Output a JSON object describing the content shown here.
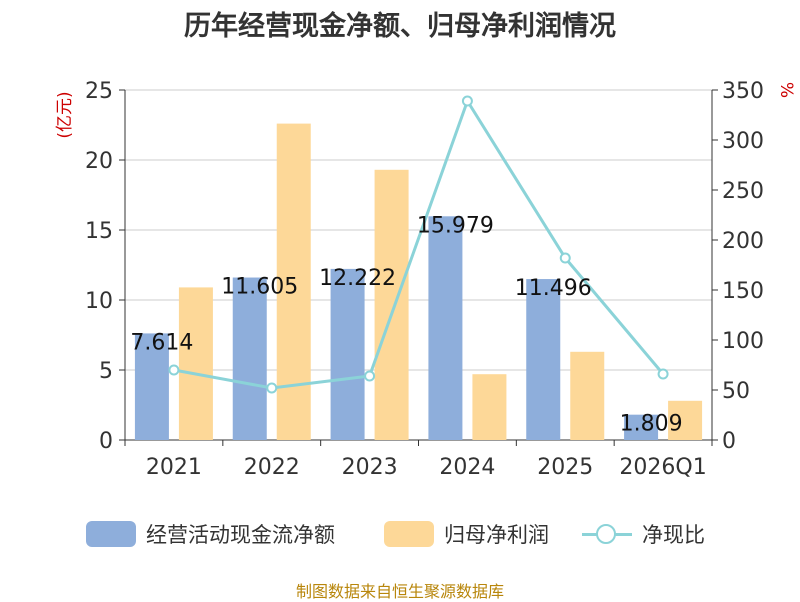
{
  "title": "历年经营现金净额、归母净利润情况",
  "source": "制图数据来自恒生聚源数据库",
  "colors": {
    "bar1": "#8eaedb",
    "bar2": "#fdd898",
    "line": "#8bd3d8",
    "axis_unit": "#cc0000",
    "grid": "#cccccc",
    "text": "#333333"
  },
  "chart_data": {
    "type": "bar",
    "title": "历年经营现金净额、归母净利润情况",
    "categories": [
      "2021",
      "2022",
      "2023",
      "2024",
      "2025",
      "2026Q1"
    ],
    "y_left": {
      "unit_label": "(亿元)",
      "ylim": [
        0,
        25
      ],
      "ticks": [
        "0",
        "5",
        "10",
        "15",
        "20",
        "25"
      ]
    },
    "y_right": {
      "unit_label": "%",
      "ylim": [
        0,
        350
      ],
      "ticks": [
        "0",
        "50",
        "100",
        "150",
        "200",
        "250",
        "300",
        "350"
      ]
    },
    "grid": true,
    "legend_position": "bottom",
    "series": [
      {
        "name": "经营活动现金流净额",
        "type": "bar",
        "axis": "left",
        "values": [
          7.614,
          11.605,
          12.222,
          15.979,
          11.496,
          1.809
        ],
        "labels": [
          "7.614",
          "11.605",
          "12.222",
          "15.979",
          "11.496",
          "1.809"
        ]
      },
      {
        "name": "归母净利润",
        "type": "bar",
        "axis": "left",
        "values": [
          10.9,
          22.6,
          19.3,
          4.7,
          6.3,
          2.8
        ]
      },
      {
        "name": "净现比",
        "type": "line",
        "axis": "right",
        "values": [
          70,
          52,
          64,
          339,
          182,
          66
        ]
      }
    ]
  }
}
